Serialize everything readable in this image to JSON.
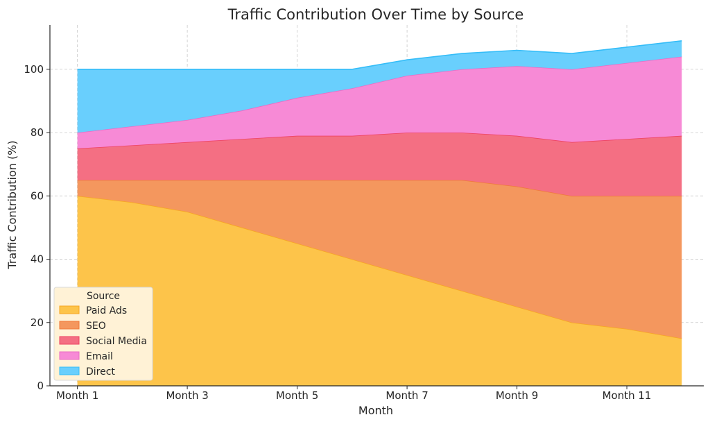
{
  "chart_data": {
    "type": "area",
    "stacked": true,
    "title": "Traffic Contribution Over Time by Source",
    "xlabel": "Month",
    "ylabel": "Traffic Contribution (%)",
    "x": [
      1,
      2,
      3,
      4,
      5,
      6,
      7,
      8,
      9,
      10,
      11,
      12
    ],
    "xtick_labels": [
      {
        "x": 1,
        "label": "Month 1"
      },
      {
        "x": 3,
        "label": "Month 3"
      },
      {
        "x": 5,
        "label": "Month 5"
      },
      {
        "x": 7,
        "label": "Month 7"
      },
      {
        "x": 9,
        "label": "Month 9"
      },
      {
        "x": 11,
        "label": "Month 11"
      }
    ],
    "yticks": [
      0,
      20,
      40,
      60,
      80,
      100
    ],
    "xlim": [
      0.5,
      12.4
    ],
    "ylim": [
      0,
      114
    ],
    "grid": true,
    "legend": {
      "title": "Source",
      "placement": "lower-left"
    },
    "series": [
      {
        "name": "Paid Ads",
        "color": "#FDC44A",
        "line": "#F6A623",
        "values": [
          60,
          58,
          55,
          50,
          45,
          40,
          35,
          30,
          25,
          20,
          18,
          15
        ]
      },
      {
        "name": "SEO",
        "color": "#F4975E",
        "line": "#EF7A3A",
        "values": [
          5,
          7,
          10,
          15,
          20,
          25,
          30,
          35,
          38,
          40,
          42,
          45
        ]
      },
      {
        "name": "Social Media",
        "color": "#F46F83",
        "line": "#EE4262",
        "values": [
          10,
          11,
          12,
          13,
          14,
          14,
          15,
          15,
          16,
          17,
          18,
          19
        ]
      },
      {
        "name": "Email",
        "color": "#F78AD6",
        "line": "#E96CC4",
        "values": [
          5,
          6,
          7,
          9,
          12,
          15,
          18,
          20,
          22,
          23,
          24,
          25
        ]
      },
      {
        "name": "Direct",
        "color": "#69CFFD",
        "line": "#35BDF8",
        "values": [
          20,
          18,
          16,
          13,
          9,
          6,
          5,
          5,
          5,
          5,
          5,
          5
        ]
      }
    ]
  }
}
